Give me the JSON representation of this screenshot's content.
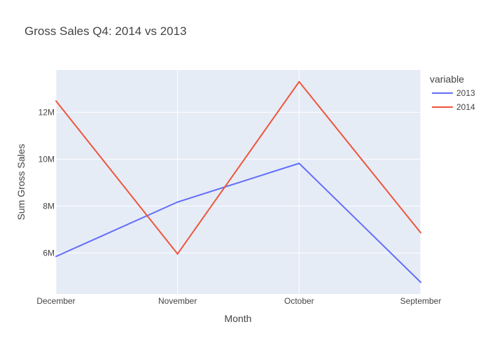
{
  "chart_data": {
    "type": "line",
    "title": "Gross Sales Q4: 2014 vs 2013",
    "xlabel": "Month",
    "ylabel": "Sum Gross Sales",
    "categories": [
      "December",
      "November",
      "October",
      "September"
    ],
    "series": [
      {
        "name": "2013",
        "values": [
          5850000,
          8170000,
          9820000,
          4750000
        ],
        "color": "#636efa"
      },
      {
        "name": "2014",
        "values": [
          12480000,
          5960000,
          13300000,
          6860000
        ],
        "color": "#ef553b"
      }
    ],
    "ylim": [
      4250000,
      13800000
    ],
    "yticks": [
      {
        "value": 6000000,
        "label": "6M"
      },
      {
        "value": 8000000,
        "label": "8M"
      },
      {
        "value": 10000000,
        "label": "10M"
      },
      {
        "value": 12000000,
        "label": "12M"
      }
    ],
    "legend": {
      "title": "variable",
      "placement": "top-right"
    },
    "grid": true,
    "plot_background": "#e5ecf6",
    "grid_color": "#ffffff"
  }
}
